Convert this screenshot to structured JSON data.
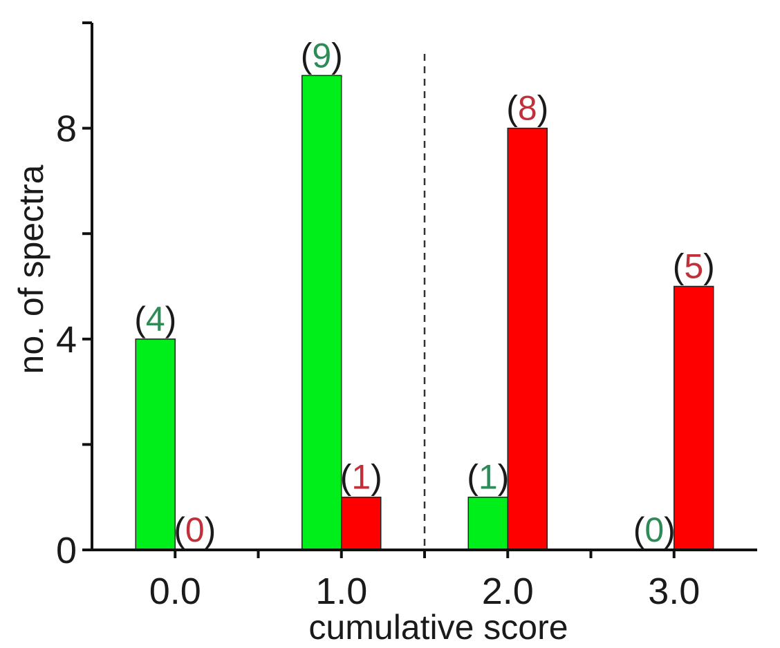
{
  "chart_data": {
    "type": "bar",
    "categories": [
      "0.0",
      "1.0",
      "2.0",
      "3.0"
    ],
    "series": [
      {
        "values": [
          4,
          9,
          1,
          0
        ],
        "color": "#00ee1a",
        "label_color": "#2e8b57"
      },
      {
        "values": [
          0,
          1,
          8,
          5
        ],
        "color": "#ff0000",
        "label_color": "#c0303a"
      }
    ],
    "data_labels": [
      [
        "(4)",
        "(9)",
        "(1)",
        "(0)"
      ],
      [
        "(0)",
        "(1)",
        "(8)",
        "(5)"
      ]
    ],
    "xlabel": "cumulative score",
    "ylabel": "no. of spectra",
    "ylim": [
      0,
      10
    ],
    "yticks_labeled": [
      0,
      4,
      8
    ],
    "yticks_minor": [
      2,
      6,
      10
    ],
    "divider_between_categories": [
      "1.0",
      "2.0"
    ],
    "grid": false,
    "legend": "none",
    "bar_edge_color": "#222222",
    "axis_color": "#111111"
  }
}
